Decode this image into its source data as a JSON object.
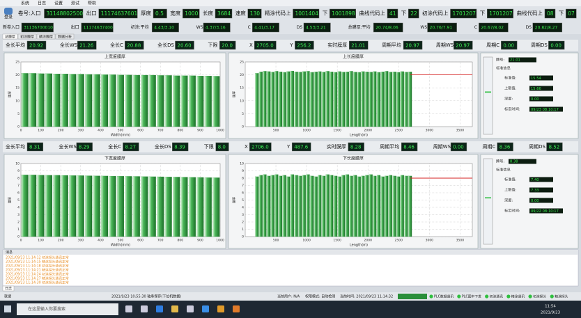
{
  "menu": [
    "系统",
    "日志",
    "设置",
    "测试",
    "帮助"
  ],
  "login": "登录",
  "header": {
    "row1": [
      {
        "label": "卷号:入口",
        "value": "31148802500"
      },
      {
        "label": "出口",
        "value": "11174637601"
      },
      {
        "label": "厚度",
        "value": "0.5"
      },
      {
        "label": "宽度",
        "value": "1000"
      },
      {
        "label": "长度",
        "value": "3684"
      },
      {
        "label": "速度",
        "value": "130"
      },
      {
        "label": "精涂代码上",
        "value": "1001404"
      },
      {
        "label": "下",
        "value": "1001898"
      },
      {
        "label": "曲线代码上",
        "value": "41"
      },
      {
        "label": "下",
        "value": "22"
      },
      {
        "label": "初涂代码上",
        "value": "1701207"
      },
      {
        "label": "下",
        "value": "1701207"
      },
      {
        "label": "曲线代码上",
        "value": "08"
      },
      {
        "label": "下",
        "value": "07"
      }
    ],
    "row2": [
      {
        "label": "新卷入口",
        "value": "31136700010"
      },
      {
        "label": "出口",
        "value": "11174637400"
      },
      {
        "label": "初涂:平均",
        "value": "4.43/3.10"
      },
      {
        "label": "WS",
        "value": "4.37/3.16"
      },
      {
        "label": "C",
        "value": "4.41/3.17"
      },
      {
        "label": "DS",
        "value": "4.53/3.21"
      },
      {
        "label": "总膜厚:平均",
        "value": "20.74/8.06"
      },
      {
        "label": "WS",
        "value": "20.76/7.91"
      },
      {
        "label": "C",
        "value": "20.67/8.02"
      },
      {
        "label": "DS",
        "value": "20.82/8.27"
      }
    ]
  },
  "tabs": [
    "总膜厚",
    "初涂膜厚",
    "精涂膜厚",
    "数据分析"
  ],
  "panels": [
    {
      "stats": [
        {
          "label": "全长平均",
          "value": "20.92"
        },
        {
          "label": "全长WS",
          "value": "21.26"
        },
        {
          "label": "全长C",
          "value": "20.88"
        },
        {
          "label": "全长DS",
          "value": "20.60"
        },
        {
          "label": "下限",
          "value": "20.0"
        },
        {
          "label": "X",
          "value": "2705.0"
        },
        {
          "label": "Y",
          "value": "256.2"
        },
        {
          "label": "实时膜厚",
          "value": "21.01"
        },
        {
          "label": "周期平均",
          "value": "20.97"
        },
        {
          "label": "周期WS",
          "value": "20.97"
        },
        {
          "label": "周期C",
          "value": "0.00"
        },
        {
          "label": "周期DS",
          "value": "0.00"
        }
      ],
      "width_chart": {
        "type": "bar",
        "title": "上宽度膜厚",
        "xlabel": "Width(mm)",
        "ylabel": "膜厚",
        "xlim": [
          0,
          1000
        ],
        "xticks": [
          0,
          100,
          200,
          300,
          400,
          500,
          600,
          700,
          800,
          900,
          1000
        ],
        "ylim": [
          0,
          25
        ],
        "yticks": [
          0,
          5,
          10,
          15,
          20,
          25
        ],
        "x": [
          20,
          60,
          100,
          140,
          180,
          220,
          260,
          300,
          340,
          380,
          420,
          460,
          500,
          540,
          580,
          620,
          660,
          700,
          740,
          780,
          820,
          860,
          900,
          940,
          980
        ],
        "values": [
          20.6,
          20.6,
          20.5,
          20.5,
          20.4,
          20.4,
          20.3,
          20.3,
          20.2,
          20.2,
          20.1,
          20.1,
          20.0,
          20.0,
          19.9,
          19.9,
          19.9,
          19.8,
          19.8,
          19.7,
          19.7,
          19.7,
          19.6,
          19.6,
          19.5
        ],
        "color": "#2f9a3c"
      },
      "length_chart": {
        "type": "bar",
        "title": "上长度膜厚",
        "xlabel": "Length(m)",
        "ylabel": "膜厚",
        "xlim": [
          0,
          3700
        ],
        "xticks": [
          500,
          1000,
          1500,
          2000,
          2500,
          3000,
          3500
        ],
        "ylim": [
          0,
          25
        ],
        "yticks": [
          0,
          5,
          10,
          15,
          20,
          25
        ],
        "x": [
          190,
          254,
          318,
          382,
          446,
          510,
          574,
          638,
          702,
          766,
          830,
          894,
          958,
          1022,
          1086,
          1150,
          1214,
          1278,
          1342,
          1406,
          1470,
          1534,
          1598,
          1662,
          1726,
          1790,
          1854,
          1918,
          1982,
          2046,
          2110,
          2174,
          2238,
          2302,
          2366,
          2430,
          2494,
          2558,
          2622,
          2686
        ],
        "values": [
          20.6,
          21.2,
          21.4,
          21.3,
          21.1,
          21.4,
          21.2,
          21.0,
          21.3,
          21.5,
          21.2,
          21.1,
          21.3,
          21.4,
          21.0,
          21.2,
          21.3,
          21.1,
          21.4,
          21.2,
          21.0,
          21.3,
          21.1,
          21.2,
          21.4,
          21.1,
          21.0,
          21.3,
          21.2,
          21.1,
          21.3,
          21.0,
          21.2,
          21.4,
          21.1,
          21.2,
          21.0,
          21.3,
          21.1,
          21.2
        ],
        "color": "#2f9a3c",
        "limit": 20,
        "limit_color": "#d42020"
      },
      "info": {
        "brand_label": "牌号:",
        "brand": "21.01",
        "heading": "标准信息",
        "fields": [
          {
            "label": "标准值:",
            "value": "15.54"
          },
          {
            "label": "上限值:",
            "value": "15.66"
          },
          {
            "label": "深度:",
            "value": "0.00"
          },
          {
            "label": "标定时间:",
            "value": "09/23 08:10:17"
          }
        ]
      }
    },
    {
      "stats": [
        {
          "label": "全长平均",
          "value": "8.31"
        },
        {
          "label": "全长WS",
          "value": "8.29"
        },
        {
          "label": "全长C",
          "value": "8.27"
        },
        {
          "label": "全长DS",
          "value": "8.39"
        },
        {
          "label": "下限",
          "value": "8.0"
        },
        {
          "label": "X",
          "value": "2706.0"
        },
        {
          "label": "Y",
          "value": "487.6"
        },
        {
          "label": "实时膜厚",
          "value": "8.28"
        },
        {
          "label": "周期平均",
          "value": "8.46"
        },
        {
          "label": "周期WS",
          "value": "0.00"
        },
        {
          "label": "周期C",
          "value": "8.36"
        },
        {
          "label": "周期DS",
          "value": "8.52"
        }
      ],
      "width_chart": {
        "type": "bar",
        "title": "下宽度膜厚",
        "xlabel": "Width(mm)",
        "ylabel": "膜厚",
        "xlim": [
          0,
          1000
        ],
        "xticks": [
          0,
          100,
          200,
          300,
          400,
          500,
          600,
          700,
          800,
          900,
          1000
        ],
        "ylim": [
          0,
          10
        ],
        "yticks": [
          0,
          1,
          2,
          3,
          4,
          5,
          6,
          7,
          8,
          9,
          10
        ],
        "x": [
          20,
          60,
          100,
          140,
          180,
          220,
          260,
          300,
          340,
          380,
          420,
          460,
          500,
          540,
          580,
          620,
          660,
          700,
          740,
          780,
          820,
          860,
          900,
          940,
          980
        ],
        "values": [
          8.45,
          8.45,
          8.42,
          8.4,
          8.4,
          8.38,
          8.36,
          8.35,
          8.33,
          8.32,
          8.3,
          8.28,
          8.27,
          8.25,
          8.24,
          8.22,
          8.2,
          8.19,
          8.17,
          8.15,
          8.14,
          8.12,
          8.1,
          8.08,
          8.06
        ],
        "color": "#2f9a3c"
      },
      "length_chart": {
        "type": "bar",
        "title": "下长度膜厚",
        "xlabel": "Length(m)",
        "ylabel": "膜厚",
        "xlim": [
          0,
          3700
        ],
        "xticks": [
          500,
          1000,
          1500,
          2000,
          2500,
          3000,
          3500
        ],
        "ylim": [
          0,
          10
        ],
        "yticks": [
          0,
          1,
          2,
          3,
          4,
          5,
          6,
          7,
          8,
          9,
          10
        ],
        "x": [
          190,
          254,
          318,
          382,
          446,
          510,
          574,
          638,
          702,
          766,
          830,
          894,
          958,
          1022,
          1086,
          1150,
          1214,
          1278,
          1342,
          1406,
          1470,
          1534,
          1598,
          1662,
          1726,
          1790,
          1854,
          1918,
          1982,
          2046,
          2110,
          2174,
          2238,
          2302,
          2366,
          2430,
          2494,
          2558,
          2622,
          2686
        ],
        "values": [
          8.2,
          8.4,
          8.5,
          8.3,
          8.4,
          8.5,
          8.3,
          8.4,
          8.2,
          8.5,
          8.4,
          8.3,
          8.4,
          8.5,
          8.3,
          8.2,
          8.4,
          8.3,
          8.5,
          8.4,
          8.3,
          8.2,
          8.4,
          8.5,
          8.3,
          8.4,
          8.2,
          8.3,
          8.4,
          8.5,
          8.3,
          8.4,
          8.2,
          8.3,
          8.4,
          8.3,
          8.2,
          8.4,
          8.3,
          8.3
        ],
        "color": "#2f9a3c",
        "limit": 8,
        "limit_color": "#d42020"
      },
      "info": {
        "brand_label": "牌号:",
        "brand": "8.38",
        "heading": "标准信息",
        "fields": [
          {
            "label": "标准值:",
            "value": "7.40"
          },
          {
            "label": "上限值:",
            "value": "7.33"
          },
          {
            "label": "深度:",
            "value": "0.00"
          },
          {
            "label": "标定时间:",
            "value": "09/22 08:10:17"
          }
        ]
      }
    }
  ],
  "log": {
    "title": "消息",
    "lines": [
      "2021/09/23 11:14:12 初涂探头通讯正常",
      "2021/09/23 11:14:15 精涂探头通讯正常",
      "2021/09/23 11:14:18 初涂探头通讯正常",
      "2021/09/23 11:14:21 精涂探头通讯正常",
      "2021/09/23 11:14:24 初涂探头通讯正常",
      "2021/09/23 11:14:27 精涂探头通讯正常",
      "2021/09/23 11:14:30 初涂探头通讯正常"
    ],
    "tab": "日志"
  },
  "status": {
    "ready": "就绪",
    "message": "2021/9/23 10:55:30 轴承保存(下位机数据)",
    "user": "当前用户: N/A",
    "mode": "权限模式: 自动检测",
    "time": "当前时间: 2021/09/23 11:14:32",
    "indicators": [
      "PLC数据通讯",
      "PLC图中下发",
      "初涂通讯",
      "精涂通讯",
      "初涂探头",
      "精涂探头"
    ]
  },
  "taskbar": {
    "search": "在这里输入你要搜索",
    "time": "11:54",
    "date": "2021/9/23"
  }
}
